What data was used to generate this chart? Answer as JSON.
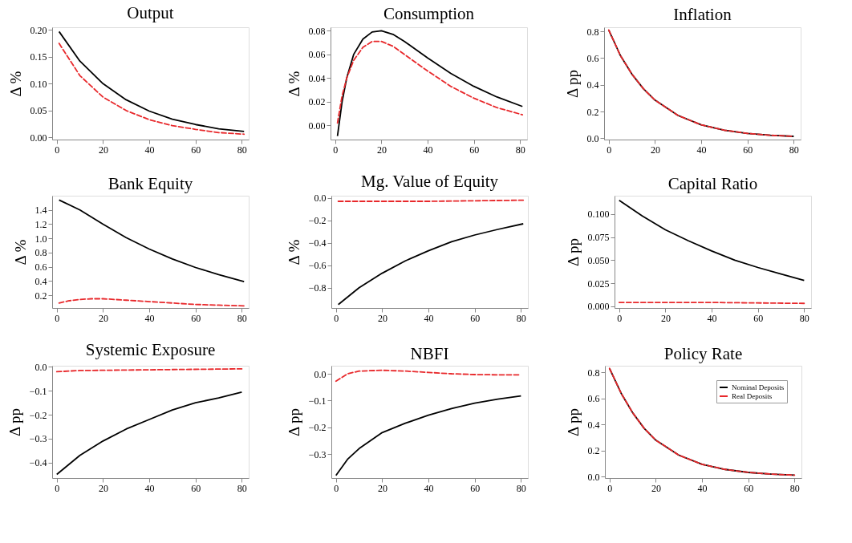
{
  "chart_data": [
    {
      "type": "line",
      "title": "Output",
      "ylabel": "Δ %",
      "xlim": [
        -2,
        83
      ],
      "xticks": [
        0,
        20,
        40,
        60,
        80
      ],
      "ylim": [
        -0.004,
        0.205
      ],
      "yticks": [
        {
          "value": 0,
          "label": "0.00"
        },
        {
          "value": 0.05,
          "label": "0.05"
        },
        {
          "value": 0.1,
          "label": "0.10"
        },
        {
          "value": 0.15,
          "label": "0.15"
        },
        {
          "value": 0.2,
          "label": "0.20"
        }
      ],
      "grid": false,
      "legend": false,
      "series": [
        {
          "color": "#000000",
          "line_style": "solid",
          "x": [
            1,
            10,
            20,
            30,
            40,
            50,
            60,
            70,
            81
          ],
          "values": [
            0.197,
            0.142,
            0.1,
            0.07,
            0.049,
            0.034,
            0.024,
            0.016,
            0.011
          ]
        },
        {
          "color": "#e8282b",
          "line_style": "dashed",
          "x": [
            1,
            10,
            20,
            30,
            40,
            50,
            60,
            70,
            81
          ],
          "values": [
            0.175,
            0.115,
            0.075,
            0.05,
            0.033,
            0.022,
            0.015,
            0.009,
            0.006
          ]
        }
      ]
    },
    {
      "type": "line",
      "title": "Consumption",
      "ylabel": "Δ %",
      "xlim": [
        -2,
        83
      ],
      "xticks": [
        0,
        20,
        40,
        60,
        80
      ],
      "ylim": [
        -0.012,
        0.083
      ],
      "yticks": [
        {
          "value": 0,
          "label": "0.00"
        },
        {
          "value": 0.02,
          "label": "0.02"
        },
        {
          "value": 0.04,
          "label": "0.04"
        },
        {
          "value": 0.06,
          "label": "0.06"
        },
        {
          "value": 0.08,
          "label": "0.08"
        }
      ],
      "grid": false,
      "legend": false,
      "series": [
        {
          "color": "#000000",
          "line_style": "solid",
          "x": [
            1,
            3,
            5,
            8,
            12,
            16,
            20,
            25,
            30,
            40,
            50,
            60,
            70,
            81
          ],
          "values": [
            -0.009,
            0.02,
            0.04,
            0.06,
            0.073,
            0.079,
            0.08,
            0.077,
            0.071,
            0.057,
            0.044,
            0.033,
            0.024,
            0.016
          ]
        },
        {
          "color": "#e8282b",
          "line_style": "dashed",
          "x": [
            1,
            3,
            5,
            8,
            12,
            16,
            20,
            25,
            30,
            40,
            50,
            60,
            70,
            81
          ],
          "values": [
            0.002,
            0.025,
            0.04,
            0.055,
            0.066,
            0.071,
            0.071,
            0.067,
            0.06,
            0.046,
            0.033,
            0.023,
            0.015,
            0.009
          ]
        }
      ]
    },
    {
      "type": "line",
      "title": "Inflation",
      "ylabel": "Δ pp",
      "xlim": [
        -2,
        83
      ],
      "xticks": [
        0,
        20,
        40,
        60,
        80
      ],
      "ylim": [
        -0.01,
        0.83
      ],
      "yticks": [
        {
          "value": 0,
          "label": "0.0"
        },
        {
          "value": 0.2,
          "label": "0.2"
        },
        {
          "value": 0.4,
          "label": "0.4"
        },
        {
          "value": 0.6,
          "label": "0.6"
        },
        {
          "value": 0.8,
          "label": "0.8"
        }
      ],
      "grid": false,
      "legend": false,
      "series": [
        {
          "color": "#000000",
          "line_style": "solid",
          "x": [
            0,
            5,
            10,
            15,
            20,
            30,
            40,
            50,
            60,
            70,
            80
          ],
          "values": [
            0.81,
            0.62,
            0.48,
            0.37,
            0.285,
            0.17,
            0.1,
            0.06,
            0.036,
            0.022,
            0.014
          ]
        },
        {
          "color": "#e8282b",
          "line_style": "dashed",
          "x": [
            0,
            5,
            10,
            15,
            20,
            30,
            40,
            50,
            60,
            70,
            80
          ],
          "values": [
            0.81,
            0.62,
            0.48,
            0.37,
            0.285,
            0.17,
            0.1,
            0.06,
            0.036,
            0.022,
            0.014
          ]
        }
      ]
    },
    {
      "type": "line",
      "title": "Bank Equity",
      "ylabel": "Δ %",
      "xlim": [
        -2,
        83
      ],
      "xticks": [
        0,
        20,
        40,
        60,
        80
      ],
      "ylim": [
        0.02,
        1.6
      ],
      "yticks": [
        0.2,
        0.4,
        0.6,
        0.8,
        {
          "value": 1,
          "label": "1.0"
        },
        1.2,
        1.4
      ],
      "grid": false,
      "legend": false,
      "series": [
        {
          "color": "#000000",
          "line_style": "solid",
          "x": [
            1,
            10,
            20,
            30,
            40,
            50,
            60,
            70,
            81
          ],
          "values": [
            1.54,
            1.4,
            1.2,
            1.01,
            0.85,
            0.71,
            0.59,
            0.49,
            0.39
          ]
        },
        {
          "color": "#e8282b",
          "line_style": "dashed",
          "x": [
            1,
            5,
            10,
            15,
            20,
            30,
            40,
            50,
            60,
            70,
            81
          ],
          "values": [
            0.09,
            0.12,
            0.14,
            0.15,
            0.15,
            0.13,
            0.11,
            0.09,
            0.07,
            0.06,
            0.05
          ]
        }
      ]
    },
    {
      "type": "line",
      "title": "Mg. Value of Equity",
      "ylabel": "Δ %",
      "xlim": [
        -2,
        83
      ],
      "xticks": [
        0,
        20,
        40,
        60,
        80
      ],
      "ylim": [
        -0.98,
        0.02
      ],
      "yticks": [
        {
          "value": -0.8,
          "label": "−0.8"
        },
        {
          "value": -0.6,
          "label": "−0.6"
        },
        {
          "value": -0.4,
          "label": "−0.4"
        },
        {
          "value": -0.2,
          "label": "−0.2"
        },
        {
          "value": 0,
          "label": "0.0"
        }
      ],
      "grid": false,
      "legend": false,
      "series": [
        {
          "color": "#000000",
          "line_style": "solid",
          "x": [
            1,
            10,
            20,
            30,
            40,
            50,
            60,
            70,
            81
          ],
          "values": [
            -0.95,
            -0.8,
            -0.67,
            -0.56,
            -0.47,
            -0.39,
            -0.33,
            -0.28,
            -0.23
          ]
        },
        {
          "color": "#e8282b",
          "line_style": "dashed",
          "x": [
            1,
            40,
            81
          ],
          "values": [
            -0.03,
            -0.03,
            -0.02
          ]
        }
      ]
    },
    {
      "type": "line",
      "title": "Capital Ratio",
      "ylabel": "Δ pp",
      "xlim": [
        -2,
        83
      ],
      "xticks": [
        0,
        20,
        40,
        60,
        80
      ],
      "ylim": [
        -0.002,
        0.12
      ],
      "yticks": [
        {
          "value": 0,
          "label": "0.000"
        },
        {
          "value": 0.025,
          "label": "0.025"
        },
        {
          "value": 0.05,
          "label": "0.050"
        },
        {
          "value": 0.075,
          "label": "0.075"
        },
        {
          "value": 0.1,
          "label": "0.100"
        }
      ],
      "grid": false,
      "legend": false,
      "series": [
        {
          "color": "#000000",
          "line_style": "solid",
          "x": [
            0,
            10,
            20,
            30,
            40,
            50,
            60,
            70,
            80
          ],
          "values": [
            0.115,
            0.098,
            0.083,
            0.071,
            0.06,
            0.05,
            0.042,
            0.035,
            0.028
          ]
        },
        {
          "color": "#e8282b",
          "line_style": "dashed",
          "x": [
            0,
            40,
            80
          ],
          "values": [
            0.004,
            0.004,
            0.003
          ]
        }
      ]
    },
    {
      "type": "line",
      "title": "Systemic Exposure",
      "ylabel": "Δ pp",
      "xlim": [
        -2,
        83
      ],
      "xticks": [
        0,
        20,
        40,
        60,
        80
      ],
      "ylim": [
        -0.465,
        0.005
      ],
      "yticks": [
        {
          "value": -0.4,
          "label": "−0.4"
        },
        {
          "value": -0.3,
          "label": "−0.3"
        },
        {
          "value": -0.2,
          "label": "−0.2"
        },
        {
          "value": -0.1,
          "label": "−0.1"
        },
        {
          "value": 0,
          "label": "0.0"
        }
      ],
      "grid": false,
      "legend": false,
      "series": [
        {
          "color": "#000000",
          "line_style": "solid",
          "x": [
            0,
            10,
            20,
            30,
            40,
            50,
            60,
            70,
            80
          ],
          "values": [
            -0.45,
            -0.37,
            -0.31,
            -0.26,
            -0.22,
            -0.18,
            -0.15,
            -0.13,
            -0.105
          ]
        },
        {
          "color": "#e8282b",
          "line_style": "dashed",
          "x": [
            0,
            10,
            40,
            80
          ],
          "values": [
            -0.02,
            -0.015,
            -0.012,
            -0.008
          ]
        }
      ]
    },
    {
      "type": "line",
      "title": "NBFI",
      "ylabel": "Δ pp",
      "xlim": [
        -2,
        83
      ],
      "xticks": [
        0,
        20,
        40,
        60,
        80
      ],
      "ylim": [
        -0.39,
        0.03
      ],
      "yticks": [
        {
          "value": -0.3,
          "label": "−0.3"
        },
        {
          "value": -0.2,
          "label": "−0.2"
        },
        {
          "value": -0.1,
          "label": "−0.1"
        },
        {
          "value": 0,
          "label": "0.0"
        }
      ],
      "grid": false,
      "legend": false,
      "series": [
        {
          "color": "#000000",
          "line_style": "solid",
          "x": [
            0,
            5,
            10,
            20,
            30,
            40,
            50,
            60,
            70,
            80
          ],
          "values": [
            -0.38,
            -0.32,
            -0.28,
            -0.22,
            -0.185,
            -0.155,
            -0.13,
            -0.11,
            -0.095,
            -0.083
          ]
        },
        {
          "color": "#e8282b",
          "line_style": "dashed",
          "x": [
            0,
            5,
            10,
            20,
            30,
            40,
            50,
            60,
            70,
            80
          ],
          "values": [
            -0.028,
            0.0,
            0.01,
            0.013,
            0.01,
            0.005,
            0.0,
            -0.003,
            -0.004,
            -0.004
          ]
        }
      ]
    },
    {
      "type": "line",
      "title": "Policy Rate",
      "ylabel": "Δ pp",
      "xlim": [
        -2,
        83
      ],
      "xticks": [
        0,
        20,
        40,
        60,
        80
      ],
      "ylim": [
        -0.01,
        0.85
      ],
      "yticks": [
        {
          "value": 0,
          "label": "0.0"
        },
        {
          "value": 0.2,
          "label": "0.2"
        },
        {
          "value": 0.4,
          "label": "0.4"
        },
        {
          "value": 0.6,
          "label": "0.6"
        },
        {
          "value": 0.8,
          "label": "0.8"
        }
      ],
      "grid": false,
      "legend": "top right",
      "series": [
        {
          "name": "Nominal Deposits",
          "color": "#000000",
          "line_style": "solid",
          "x": [
            0,
            5,
            10,
            15,
            20,
            30,
            40,
            50,
            60,
            70,
            80
          ],
          "values": [
            0.83,
            0.64,
            0.49,
            0.37,
            0.28,
            0.165,
            0.095,
            0.056,
            0.033,
            0.02,
            0.012
          ]
        },
        {
          "name": "Real Deposits",
          "color": "#e8282b",
          "line_style": "dashed",
          "x": [
            0,
            5,
            10,
            15,
            20,
            30,
            40,
            50,
            60,
            70,
            80
          ],
          "values": [
            0.83,
            0.64,
            0.49,
            0.37,
            0.28,
            0.165,
            0.095,
            0.056,
            0.033,
            0.02,
            0.012
          ]
        }
      ]
    }
  ]
}
